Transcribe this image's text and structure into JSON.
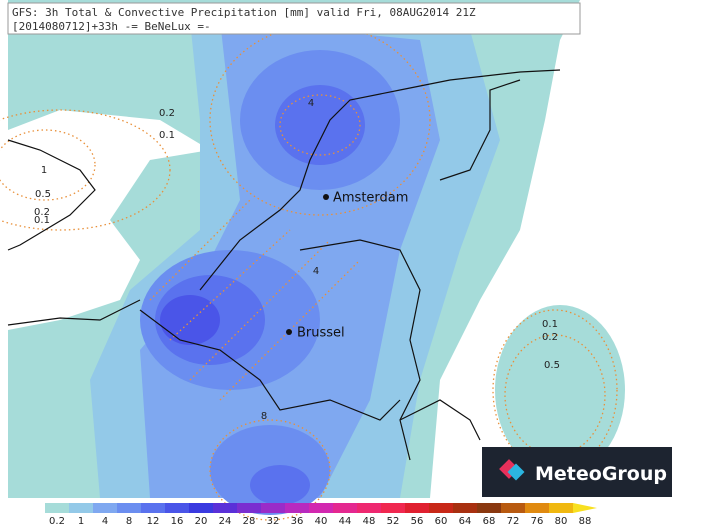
{
  "header": {
    "line1": "GFS: 3h Total & Convective Precipitation [mm] valid Fri, 08AUG2014 21Z",
    "line2": "[2014080712]+33h -= BeNeLux =-"
  },
  "contour_labels": [
    "4",
    "0.2",
    "0.1",
    "1",
    "0.5",
    "0.2",
    "0.1",
    "4",
    "8",
    "0.1",
    "0.2",
    "0.5"
  ],
  "cities": [
    "Amsterdam",
    "Brussel"
  ],
  "logo": "MeteoGroup",
  "colorbar": {
    "labels": [
      "0.2",
      "1",
      "4",
      "8",
      "12",
      "16",
      "20",
      "24",
      "28",
      "32",
      "36",
      "40",
      "44",
      "48",
      "52",
      "56",
      "60",
      "64",
      "68",
      "72",
      "76",
      "80",
      "88"
    ],
    "colors": [
      "#a6dcd9",
      "#93c9e8",
      "#7fa8f0",
      "#6b8ef0",
      "#5a72ee",
      "#4a55e8",
      "#3a3ae0",
      "#5a30d8",
      "#7a2ed0",
      "#9a2cc8",
      "#b82abf",
      "#d228b0",
      "#e42890",
      "#ee2870",
      "#f02850",
      "#e02030",
      "#c82818",
      "#a83010",
      "#8a3810",
      "#b85a10",
      "#e08a10",
      "#f0b810",
      "#f8e020"
    ]
  }
}
